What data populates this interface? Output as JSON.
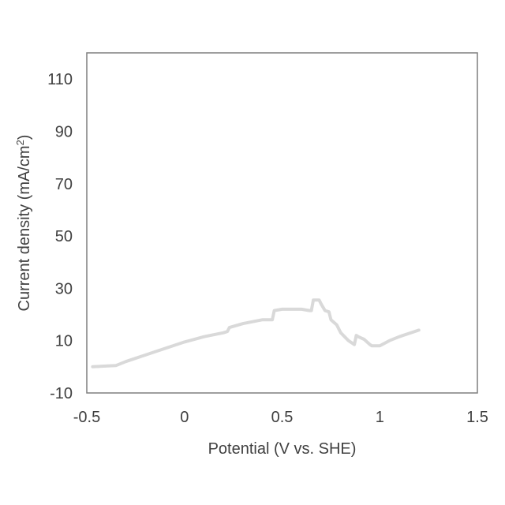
{
  "chart_data": {
    "type": "line",
    "title": "",
    "xlabel": "Potential (V vs. SHE)",
    "ylabel_main": "Current density (mA/cm",
    "ylabel_sup": "2",
    "ylabel_end": ")",
    "xlim": [
      -0.5,
      1.5
    ],
    "ylim": [
      -10,
      120
    ],
    "x_ticks": [
      "-0.5",
      "0",
      "0.5",
      "1",
      "1.5"
    ],
    "y_ticks": [
      "-10",
      "10",
      "30",
      "50",
      "70",
      "90",
      "110"
    ],
    "grid": false,
    "legend": "none",
    "series_color": "#d9d9d9",
    "series": [
      {
        "x": [
          -0.47,
          -0.35,
          -0.3,
          -0.2,
          -0.1,
          0.0,
          0.1,
          0.2,
          0.22,
          0.23,
          0.3,
          0.4,
          0.45,
          0.46,
          0.5,
          0.6,
          0.64,
          0.65,
          0.66,
          0.69,
          0.7,
          0.72,
          0.74,
          0.75,
          0.78,
          0.8,
          0.84,
          0.87,
          0.88,
          0.89,
          0.92,
          0.95,
          0.96,
          1.0,
          1.05,
          1.1,
          1.2
        ],
        "y": [
          0,
          0.5,
          2,
          4.5,
          7,
          9.5,
          11.5,
          13,
          13.5,
          15,
          16.5,
          18,
          18,
          21.5,
          22,
          22,
          21.5,
          21.5,
          25.5,
          25.5,
          24,
          21.5,
          21,
          18,
          16,
          13,
          10,
          8.5,
          12,
          11.5,
          10.5,
          8.5,
          8,
          8,
          10,
          11.5,
          14
        ]
      }
    ]
  }
}
